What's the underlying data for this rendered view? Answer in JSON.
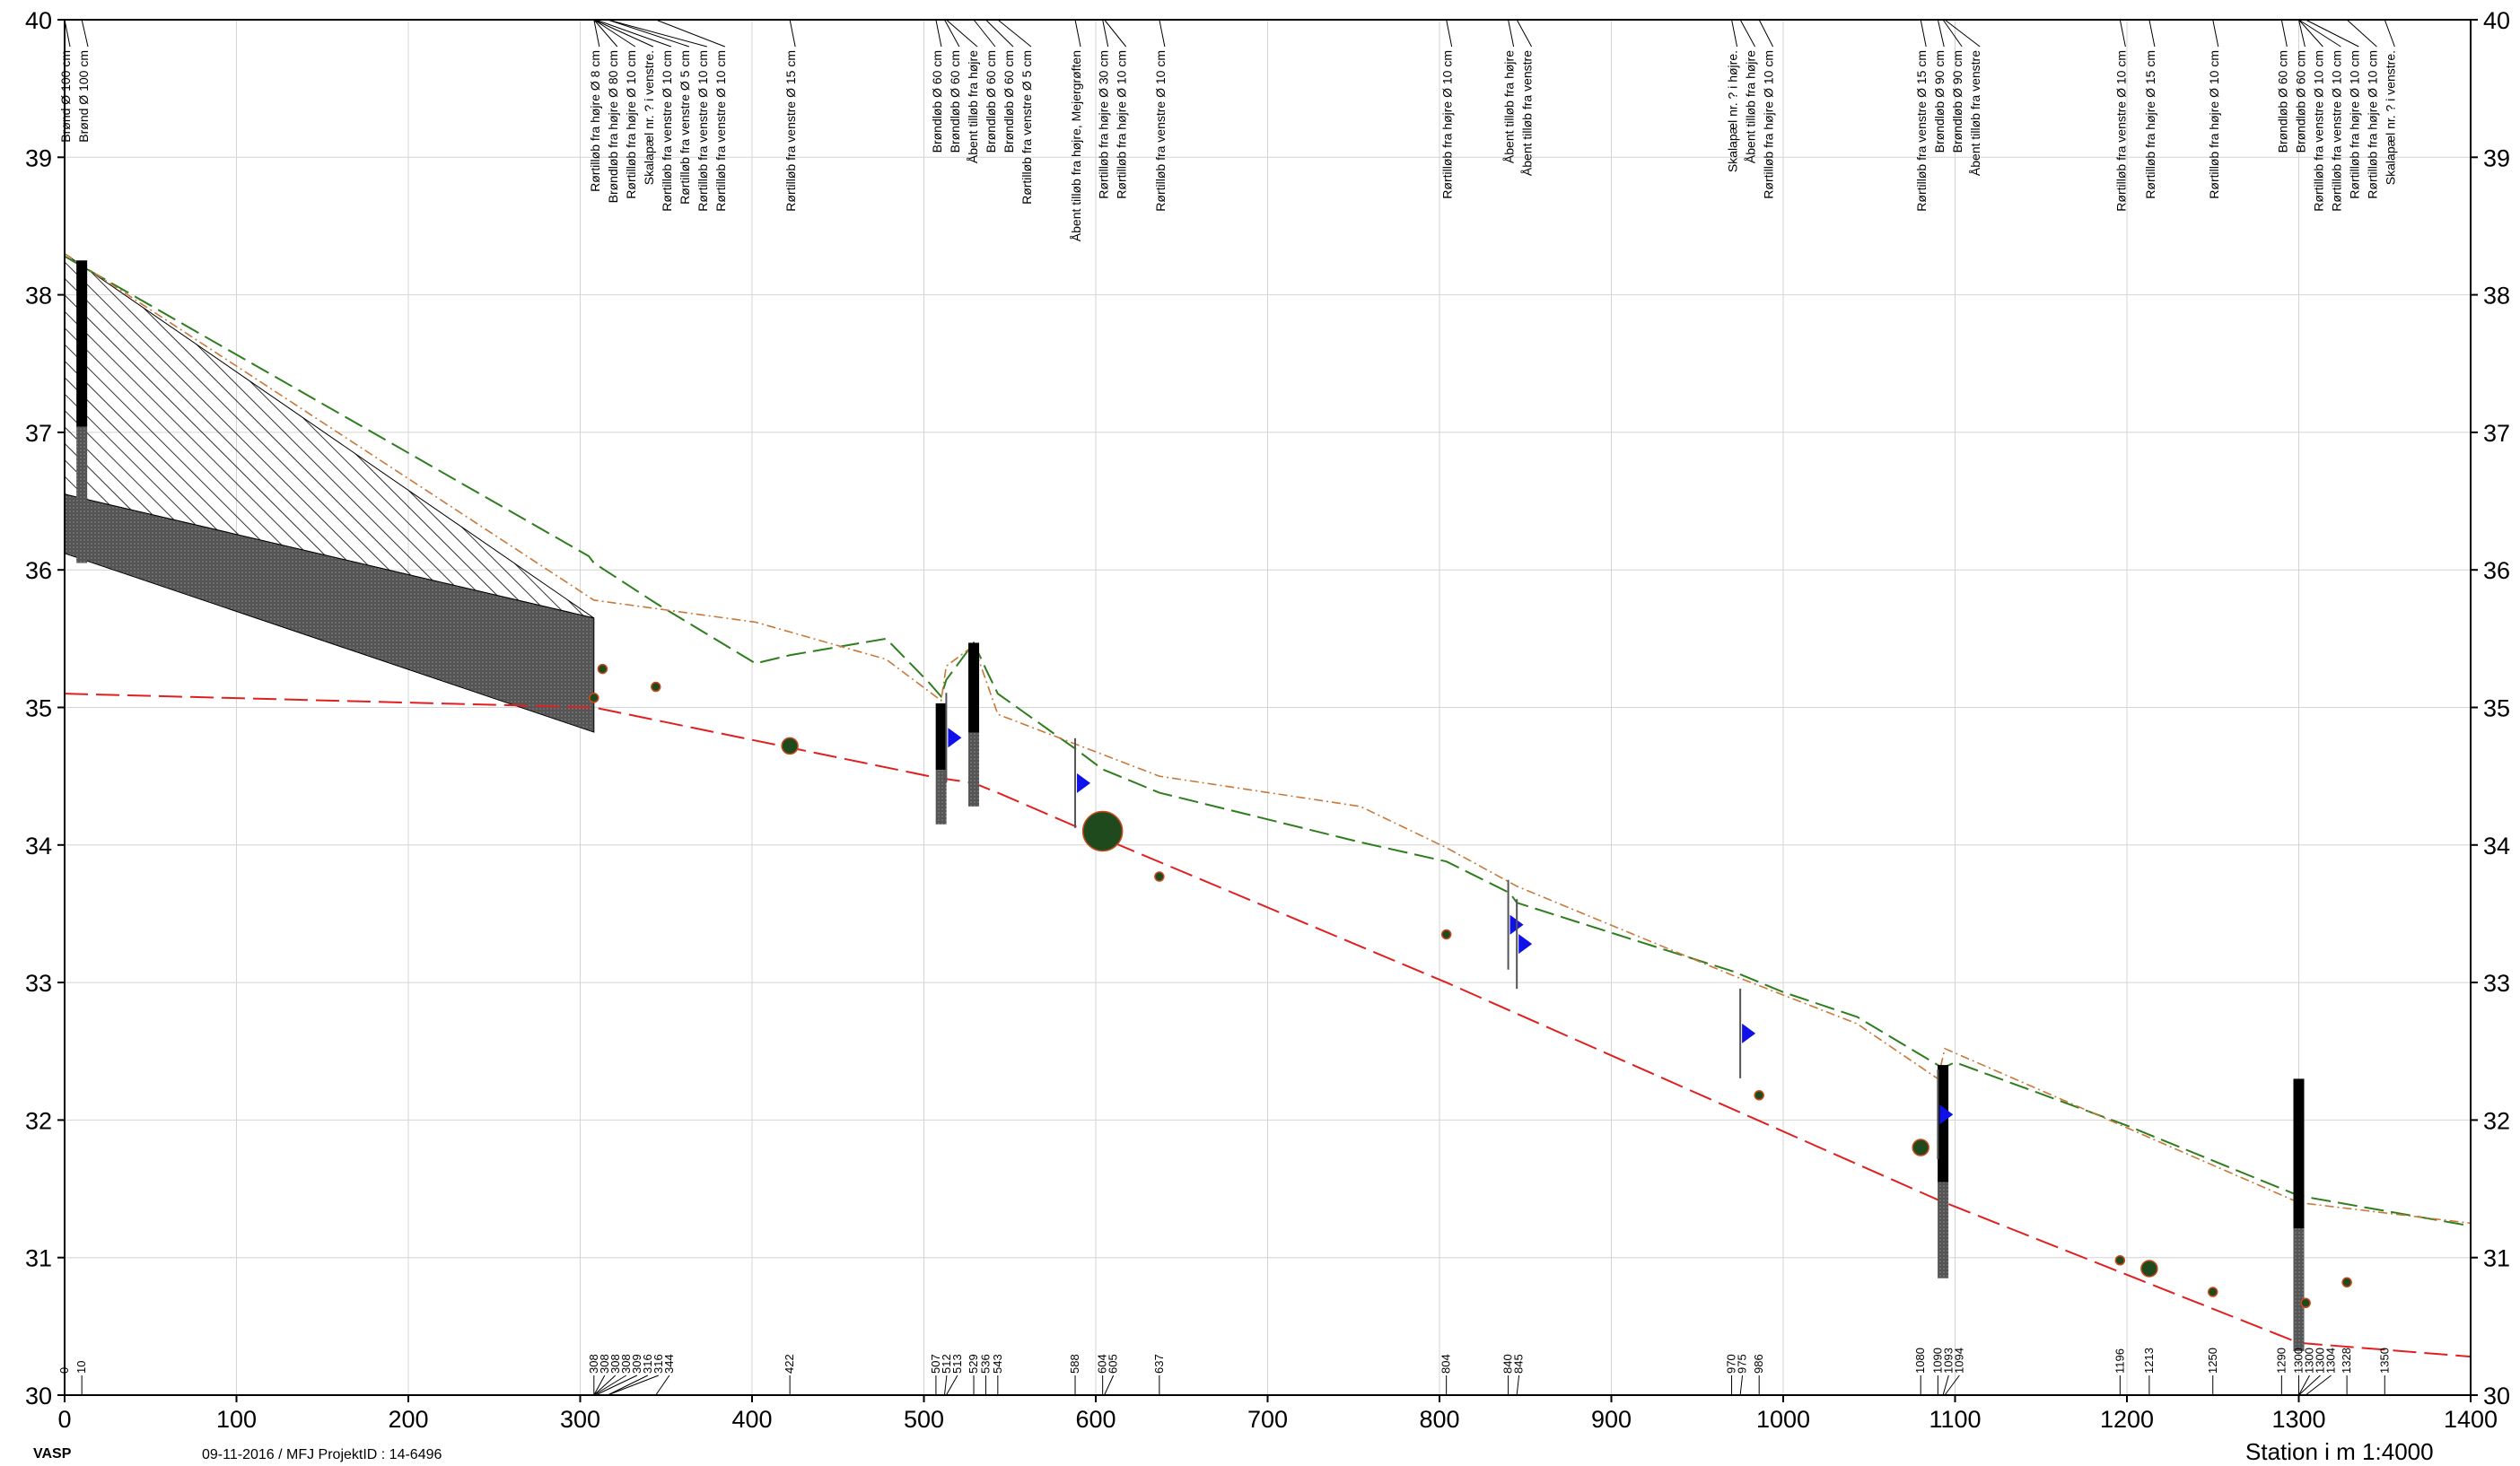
{
  "chart_data": {
    "type": "line",
    "xlim": [
      0,
      1400
    ],
    "ylim": [
      30,
      40
    ],
    "xticks": [
      0,
      100,
      200,
      300,
      400,
      500,
      600,
      700,
      800,
      900,
      1000,
      1100,
      1200,
      1300,
      1400
    ],
    "yticks": [
      30,
      31,
      32,
      33,
      34,
      35,
      36,
      37,
      38,
      39,
      40
    ],
    "grid": true,
    "xlabel": "Station i m 1:4000",
    "colors": {
      "terrain": "#2e7d1e",
      "design_terrain": "#c8793a",
      "invert": "#e02020",
      "culvert_marker": "#1010e8",
      "point_fill": "#1e4a1e",
      "point_edge": "#c84a1a"
    },
    "series": [
      {
        "role": "terrain",
        "style": "dashed",
        "x": [
          0,
          305,
          308,
          345,
          402,
          422,
          478,
          503,
          510,
          513,
          529,
          536,
          543,
          588,
          604,
          637,
          754,
          804,
          841,
          845,
          971,
          1000,
          1043,
          1090,
          1093,
          1100,
          1200,
          1300,
          1400
        ],
        "y": [
          38.28,
          36.1,
          36.05,
          35.75,
          35.32,
          35.38,
          35.5,
          35.18,
          35.08,
          35.2,
          35.47,
          35.28,
          35.1,
          34.7,
          34.55,
          34.38,
          34.02,
          33.88,
          33.65,
          33.58,
          33.08,
          32.93,
          32.75,
          32.4,
          32.38,
          32.42,
          31.96,
          31.45,
          31.23
        ]
      },
      {
        "role": "design_terrain",
        "style": "dash-dot",
        "x": [
          0,
          308,
          402,
          478,
          510,
          513,
          529,
          543,
          637,
          754,
          804,
          845,
          971,
          1043,
          1090,
          1094,
          1300,
          1400
        ],
        "y": [
          38.3,
          35.78,
          35.62,
          35.35,
          35.05,
          35.3,
          35.45,
          34.95,
          34.5,
          34.28,
          33.98,
          33.7,
          33.05,
          32.7,
          32.3,
          32.52,
          31.4,
          31.25
        ]
      },
      {
        "role": "invert",
        "style": "dashed",
        "x": [
          0,
          308,
          503,
          513,
          529,
          543,
          604,
          804,
          1090,
          1300,
          1400
        ],
        "y": [
          35.1,
          35.0,
          34.5,
          34.48,
          34.45,
          34.38,
          34.05,
          33.0,
          31.42,
          30.38,
          30.28
        ]
      }
    ],
    "hatched_band": {
      "x": [
        0,
        308
      ],
      "top": [
        38.3,
        35.65
      ],
      "bottom": [
        36.55,
        35.65
      ]
    },
    "grey_band": {
      "x": [
        0,
        308
      ],
      "top": [
        36.55,
        35.65
      ],
      "bottom": [
        36.12,
        34.82
      ]
    },
    "wells": [
      {
        "x": 10,
        "top": 38.25,
        "bottom": 36.05
      },
      {
        "x": 510,
        "top": 35.03,
        "bottom": 34.15
      },
      {
        "x": 529,
        "top": 35.47,
        "bottom": 34.28
      },
      {
        "x": 1093,
        "top": 32.4,
        "bottom": 30.85
      },
      {
        "x": 1300,
        "top": 32.3,
        "bottom": 30.32
      }
    ],
    "points": [
      {
        "x": 308,
        "y": 35.07,
        "size": "small"
      },
      {
        "x": 313,
        "y": 35.28,
        "size": "small"
      },
      {
        "x": 344,
        "y": 35.15,
        "size": "small"
      },
      {
        "x": 422,
        "y": 34.72,
        "size": "medium"
      },
      {
        "x": 604,
        "y": 34.1,
        "size": "xlarge"
      },
      {
        "x": 637,
        "y": 33.77,
        "size": "small"
      },
      {
        "x": 804,
        "y": 33.35,
        "size": "small"
      },
      {
        "x": 986,
        "y": 32.18,
        "size": "small"
      },
      {
        "x": 1080,
        "y": 31.8,
        "size": "medium"
      },
      {
        "x": 1196,
        "y": 30.98,
        "size": "small"
      },
      {
        "x": 1213,
        "y": 30.92,
        "size": "medium"
      },
      {
        "x": 1250,
        "y": 30.75,
        "size": "small"
      },
      {
        "x": 1304,
        "y": 30.67,
        "size": "small"
      },
      {
        "x": 1328,
        "y": 30.82,
        "size": "small"
      }
    ],
    "flow_markers": [
      {
        "x": 513,
        "y": 34.78
      },
      {
        "x": 588,
        "y": 34.45
      },
      {
        "x": 840,
        "y": 33.42
      },
      {
        "x": 845,
        "y": 33.28
      },
      {
        "x": 975,
        "y": 32.63
      },
      {
        "x": 1090,
        "y": 32.04
      }
    ],
    "stations": [
      {
        "x": 0,
        "label": "0"
      },
      {
        "x": 10,
        "label": "10"
      },
      {
        "x": 308,
        "label": "308"
      },
      {
        "x": 308,
        "label": "308"
      },
      {
        "x": 308,
        "label": "308"
      },
      {
        "x": 308,
        "label": "308"
      },
      {
        "x": 309,
        "label": "309"
      },
      {
        "x": 316,
        "label": "316"
      },
      {
        "x": 316,
        "label": "316"
      },
      {
        "x": 344,
        "label": "344"
      },
      {
        "x": 422,
        "label": "422"
      },
      {
        "x": 507,
        "label": "507"
      },
      {
        "x": 512,
        "label": "512"
      },
      {
        "x": 513,
        "label": "513"
      },
      {
        "x": 529,
        "label": "529"
      },
      {
        "x": 536,
        "label": "536"
      },
      {
        "x": 543,
        "label": "543"
      },
      {
        "x": 588,
        "label": "588"
      },
      {
        "x": 604,
        "label": "604"
      },
      {
        "x": 605,
        "label": "605"
      },
      {
        "x": 637,
        "label": "637"
      },
      {
        "x": 804,
        "label": "804"
      },
      {
        "x": 840,
        "label": "840"
      },
      {
        "x": 845,
        "label": "845"
      },
      {
        "x": 970,
        "label": "970"
      },
      {
        "x": 975,
        "label": "975"
      },
      {
        "x": 986,
        "label": "986"
      },
      {
        "x": 1080,
        "label": "1080"
      },
      {
        "x": 1090,
        "label": "1090"
      },
      {
        "x": 1093,
        "label": "1093"
      },
      {
        "x": 1094,
        "label": "1094"
      },
      {
        "x": 1196,
        "label": "1196"
      },
      {
        "x": 1213,
        "label": "1213"
      },
      {
        "x": 1250,
        "label": "1250"
      },
      {
        "x": 1290,
        "label": "1290"
      },
      {
        "x": 1300,
        "label": "1300"
      },
      {
        "x": 1300,
        "label": "1300"
      },
      {
        "x": 1300,
        "label": "1300"
      },
      {
        "x": 1304,
        "label": "1304"
      },
      {
        "x": 1328,
        "label": "1328"
      },
      {
        "x": 1350,
        "label": "1350"
      }
    ],
    "annotations": [
      {
        "x": 0,
        "text": "Brønd Ø 100 cm"
      },
      {
        "x": 10,
        "text": "Brønd Ø 100 cm"
      },
      {
        "x": 308,
        "text": "Rørtilløb fra højre Ø 8 cm"
      },
      {
        "x": 308,
        "text": "Brøndløb fra højre Ø 80 cm"
      },
      {
        "x": 308,
        "text": "Rørtilløb fra højre Ø 10 cm"
      },
      {
        "x": 308,
        "text": "Skalapæl nr. ? i venstre."
      },
      {
        "x": 309,
        "text": "Rørtilløb fra venstre Ø 10 cm"
      },
      {
        "x": 316,
        "text": "Rørtilløb fra venstre Ø 5 cm"
      },
      {
        "x": 316,
        "text": "Rørtilløb fra venstre Ø 10 cm"
      },
      {
        "x": 344,
        "text": "Rørtilløb fra venstre Ø 10 cm"
      },
      {
        "x": 422,
        "text": "Rørtilløb fra venstre Ø 15 cm"
      },
      {
        "x": 507,
        "text": "Brøndløb Ø 60 cm"
      },
      {
        "x": 512,
        "text": "Brøndløb Ø 60 cm"
      },
      {
        "x": 513,
        "text": "Åbent tilløb fra højre"
      },
      {
        "x": 529,
        "text": "Brøndløb Ø 60 cm"
      },
      {
        "x": 536,
        "text": "Brøndløb Ø 60 cm"
      },
      {
        "x": 543,
        "text": "Rørtilløb fra venstre Ø 5 cm"
      },
      {
        "x": 588,
        "text": "Åbent tilløb fra højre, Mejergrøften"
      },
      {
        "x": 604,
        "text": "Rørtilløb fra højre Ø 30 cm"
      },
      {
        "x": 605,
        "text": "Rørtilløb fra højre Ø 10 cm"
      },
      {
        "x": 637,
        "text": "Rørtilløb fra venstre Ø 10 cm"
      },
      {
        "x": 804,
        "text": "Rørtilløb fra højre Ø 10 cm"
      },
      {
        "x": 840,
        "text": "Åbent tilløb fra højre"
      },
      {
        "x": 845,
        "text": "Åbent tilløb fra venstre"
      },
      {
        "x": 970,
        "text": "Skalapæl nr. ? i højre."
      },
      {
        "x": 975,
        "text": "Åbent tilløb fra højre"
      },
      {
        "x": 986,
        "text": "Rørtilløb fra højre Ø 10 cm"
      },
      {
        "x": 1080,
        "text": "Rørtilløb fra venstre Ø 15 cm"
      },
      {
        "x": 1090,
        "text": "Brøndløb Ø 90 cm"
      },
      {
        "x": 1093,
        "text": "Brøndløb Ø 90 cm"
      },
      {
        "x": 1094,
        "text": "Åbent tilløb fra venstre"
      },
      {
        "x": 1196,
        "text": "Rørtilløb fra venstre Ø 10 cm"
      },
      {
        "x": 1213,
        "text": "Rørtilløb fra højre Ø 15 cm"
      },
      {
        "x": 1250,
        "text": "Rørtilløb fra højre Ø 10 cm"
      },
      {
        "x": 1290,
        "text": "Brøndløb Ø 60 cm"
      },
      {
        "x": 1300,
        "text": "Brøndløb Ø 60 cm"
      },
      {
        "x": 1300,
        "text": "Rørtilløb fra venstre Ø 10 cm"
      },
      {
        "x": 1300,
        "text": "Rørtilløb fra venstre Ø 10 cm"
      },
      {
        "x": 1304,
        "text": "Rørtilløb fra højre Ø 10 cm"
      },
      {
        "x": 1328,
        "text": "Rørtilløb fra højre Ø 10 cm"
      },
      {
        "x": 1350,
        "text": "Skalapæl nr. ? i venstre."
      }
    ]
  },
  "footer": {
    "company": "VASP",
    "date_line": "09-11-2016 / MFJ   ProjektID : 14-6496",
    "station_label": "Station i m 1:4000"
  }
}
